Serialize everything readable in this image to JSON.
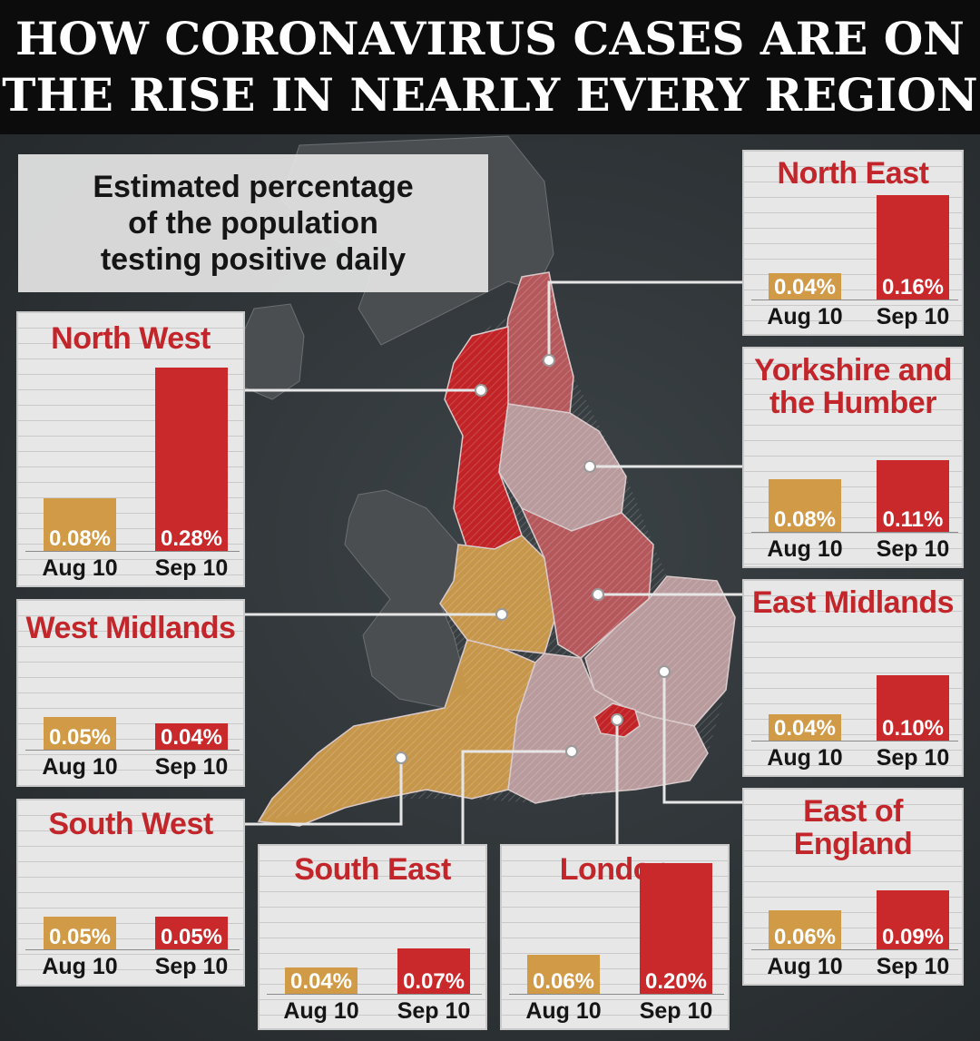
{
  "header": {
    "line1": "HOW CORONAVIRUS CASES ARE ON",
    "line2": "THE RISE IN NEARLY EVERY REGION"
  },
  "note": "Estimated percentage\nof the population\ntesting positive daily",
  "colors": {
    "aug_bar": "#d19a47",
    "sep_bar": "#c9292b",
    "title": "#c3262a",
    "panel_bg": "#e7e7e7",
    "header_bg": "#0c0c0c",
    "map_dark": "#4a4e50",
    "map_rising_light": "#b99b9d",
    "map_rising_mid": "#b5585c",
    "map_red": "#c12326",
    "map_gold": "#c6964a"
  },
  "chart_data": {
    "type": "bar",
    "categories": [
      "Aug 10",
      "Sep 10"
    ],
    "unit": "%",
    "regions": [
      {
        "key": "north_east",
        "title": "North East",
        "values": [
          0.04,
          0.16
        ],
        "labels": [
          "0.04%",
          "0.16%"
        ]
      },
      {
        "key": "north_west",
        "title": "North West",
        "values": [
          0.08,
          0.28
        ],
        "labels": [
          "0.08%",
          "0.28%"
        ]
      },
      {
        "key": "yorkshire",
        "title": "Yorkshire and\nthe Humber",
        "values": [
          0.08,
          0.11
        ],
        "labels": [
          "0.08%",
          "0.11%"
        ]
      },
      {
        "key": "west_midlands",
        "title": "West Midlands",
        "values": [
          0.05,
          0.04
        ],
        "labels": [
          "0.05%",
          "0.04%"
        ]
      },
      {
        "key": "east_midlands",
        "title": "East Midlands",
        "values": [
          0.04,
          0.1
        ],
        "labels": [
          "0.04%",
          "0.10%"
        ]
      },
      {
        "key": "south_west",
        "title": "South West",
        "values": [
          0.05,
          0.05
        ],
        "labels": [
          "0.05%",
          "0.05%"
        ]
      },
      {
        "key": "east_of_england",
        "title": "East of England",
        "values": [
          0.06,
          0.09
        ],
        "labels": [
          "0.06%",
          "0.09%"
        ]
      },
      {
        "key": "south_east",
        "title": "South East",
        "values": [
          0.04,
          0.07
        ],
        "labels": [
          "0.04%",
          "0.07%"
        ]
      },
      {
        "key": "london",
        "title": "London",
        "values": [
          0.06,
          0.2
        ],
        "labels": [
          "0.06%",
          "0.20%"
        ]
      }
    ]
  }
}
